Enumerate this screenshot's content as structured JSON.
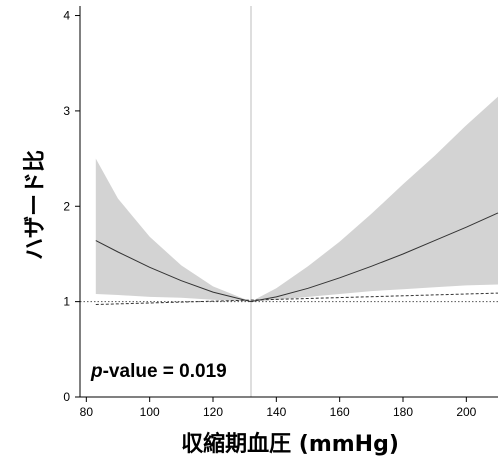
{
  "chart_data": {
    "type": "line",
    "xlabel": "収縮期血圧 (mmHg)",
    "ylabel": "ハザード比",
    "xlim": [
      78,
      210
    ],
    "ylim": [
      0,
      4.1
    ],
    "x_ticks": [
      80,
      100,
      120,
      140,
      160,
      180,
      200
    ],
    "y_ticks": [
      0,
      1,
      2,
      3,
      4
    ],
    "reference_x": 132,
    "reference_y": 1,
    "grid": false,
    "annotation": {
      "prefix": "p",
      "text": "-value = 0.019"
    },
    "series": [
      {
        "role": "estimate",
        "x": [
          83,
          90,
          100,
          110,
          120,
          132,
          140,
          150,
          160,
          170,
          180,
          190,
          200,
          210
        ],
        "values": [
          1.64,
          1.52,
          1.36,
          1.22,
          1.1,
          1.0,
          1.05,
          1.14,
          1.25,
          1.37,
          1.5,
          1.64,
          1.78,
          1.93
        ]
      },
      {
        "role": "ci-upper",
        "x": [
          83,
          90,
          100,
          110,
          120,
          132,
          140,
          150,
          160,
          170,
          180,
          190,
          200,
          210
        ],
        "values": [
          2.5,
          2.08,
          1.68,
          1.38,
          1.16,
          1.0,
          1.14,
          1.37,
          1.63,
          1.92,
          2.23,
          2.53,
          2.85,
          3.15
        ]
      },
      {
        "role": "ci-lower",
        "x": [
          83,
          90,
          100,
          110,
          120,
          132,
          140,
          150,
          160,
          170,
          180,
          190,
          200,
          210
        ],
        "values": [
          1.08,
          1.07,
          1.05,
          1.04,
          1.02,
          1.0,
          1.02,
          1.05,
          1.08,
          1.11,
          1.13,
          1.15,
          1.17,
          1.18
        ]
      },
      {
        "role": "dashed-line",
        "x": [
          83,
          210
        ],
        "values": [
          0.97,
          1.09
        ]
      }
    ]
  }
}
